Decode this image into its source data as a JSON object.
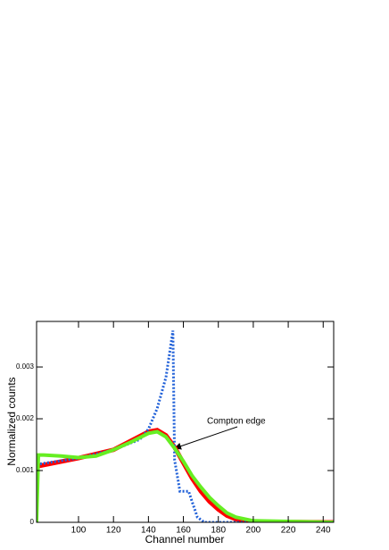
{
  "chart_data": {
    "type": "line",
    "xlabel": "Channel number",
    "ylabel": "Normalized counts",
    "annotation": "Compton edge",
    "xlim": [
      76,
      246
    ],
    "ylim": [
      0,
      0.00388
    ],
    "xticks": [
      100,
      120,
      140,
      160,
      180,
      200,
      220,
      240
    ],
    "yticks": [
      0,
      0.001,
      0.002,
      0.003
    ],
    "series": [
      {
        "color": "#ff0000",
        "style": "solid",
        "width": 5,
        "x": [
          76,
          100,
          120,
          140,
          145,
          150,
          155,
          160,
          165,
          170,
          175,
          180,
          185,
          190,
          200,
          246
        ],
        "values": [
          0.00108,
          0.00124,
          0.0014,
          0.00175,
          0.00178,
          0.00168,
          0.00145,
          0.00115,
          0.00085,
          0.0006,
          0.0004,
          0.00025,
          0.00013,
          6e-05,
          1e-05,
          0
        ]
      },
      {
        "color": "#2060d8",
        "style": "dotted",
        "width": 3,
        "x": [
          76,
          100,
          120,
          135,
          140,
          145,
          150,
          154,
          155,
          157,
          158,
          163,
          165,
          168,
          172,
          246
        ],
        "values": [
          0.00112,
          0.00124,
          0.0014,
          0.0016,
          0.0018,
          0.0022,
          0.0028,
          0.0037,
          0.0012,
          0.0008,
          0.0006,
          0.0006,
          0.0004,
          0.0001,
          0,
          0
        ]
      },
      {
        "color": "#66ee22",
        "style": "solid",
        "width": 4,
        "x": [
          76,
          77,
          80,
          90,
          100,
          110,
          120,
          130,
          140,
          145,
          150,
          155,
          160,
          165,
          170,
          175,
          180,
          185,
          190,
          200,
          246
        ],
        "values": [
          0,
          0.0013,
          0.0013,
          0.00128,
          0.00125,
          0.00128,
          0.0014,
          0.00155,
          0.00172,
          0.00175,
          0.00165,
          0.00143,
          0.00118,
          0.0009,
          0.00068,
          0.00048,
          0.00032,
          0.00018,
          0.0001,
          3e-05,
          0
        ]
      }
    ]
  }
}
